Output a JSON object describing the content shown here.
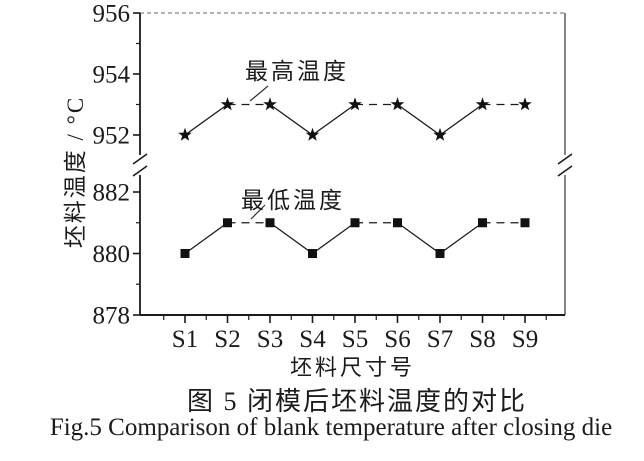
{
  "chart_data": {
    "type": "line",
    "title": "",
    "xlabel": "坯料尺寸号",
    "ylabel": "坯料温度 / °C",
    "categories": [
      "S1",
      "S2",
      "S3",
      "S4",
      "S5",
      "S6",
      "S7",
      "S8",
      "S9"
    ],
    "series": [
      {
        "name": "最高温度",
        "marker": "star",
        "values": [
          952,
          953,
          953,
          952,
          953,
          953,
          952,
          953,
          953
        ]
      },
      {
        "name": "最低温度",
        "marker": "square",
        "values": [
          880,
          881,
          881,
          880,
          881,
          881,
          880,
          881,
          881
        ]
      }
    ],
    "y_axis": {
      "broken": true,
      "segments": [
        {
          "range": [
            952,
            956
          ],
          "major_ticks": [
            956,
            954,
            952
          ],
          "minor_ticks": [
            955,
            953
          ]
        },
        {
          "range": [
            878,
            882
          ],
          "major_ticks": [
            882,
            880,
            878
          ],
          "minor_ticks": [
            881,
            879
          ]
        }
      ]
    },
    "annotations": [
      {
        "text": "最高温度",
        "points_to": "series 最高温度 between S2 and S3"
      },
      {
        "text": "最低温度",
        "points_to": "series 最低温度 between S2 and S3"
      }
    ],
    "legend_position": "none",
    "grid": false,
    "colors": {
      "line": "#1b1b1b",
      "marker": "#111111",
      "text": "#1b1b1b",
      "background": "#ffffff"
    }
  },
  "captions": {
    "zh": "图 5  闭模后坯料温度的对比",
    "en": "Fig.5  Comparison of blank temperature after closing die"
  }
}
